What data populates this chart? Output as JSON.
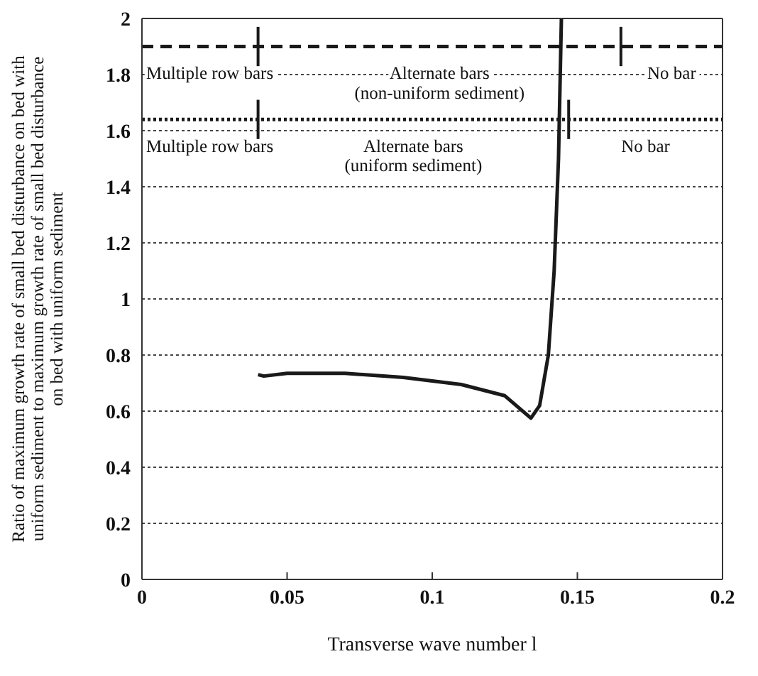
{
  "chart_data": {
    "type": "line",
    "xlabel": "Transverse wave number l",
    "ylabel": "Ratio of maximum growth rate of small bed disturbance on bed with\nuniform sediment to maximum growth rate of small bed disturbance\non bed with uniform sediment",
    "x": [
      0.04,
      0.042,
      0.05,
      0.07,
      0.09,
      0.11,
      0.125,
      0.134,
      0.137,
      0.14,
      0.142,
      0.1435,
      0.1445
    ],
    "series": [
      {
        "color": "#1a1a1a",
        "values": [
          0.73,
          0.725,
          0.735,
          0.735,
          0.72,
          0.695,
          0.655,
          0.575,
          0.62,
          0.8,
          1.1,
          1.5,
          2
        ]
      },
      {
        "color": "#1a1a1a",
        "x": [
          0.04,
          0.04
        ],
        "values": [
          1.83,
          1.97
        ]
      },
      {
        "color": "#1a1a1a",
        "x": [
          0.165,
          0.165
        ],
        "values": [
          1.83,
          1.97
        ]
      },
      {
        "color": "#1a1a1a",
        "x": [
          0.04,
          0.04
        ],
        "values": [
          1.57,
          1.71
        ]
      },
      {
        "color": "#1a1a1a",
        "x": [
          0.147,
          0.147
        ],
        "values": [
          1.57,
          1.71
        ]
      }
    ],
    "xlim": [
      0,
      0.2
    ],
    "xticks": [
      0,
      0.05,
      0.1,
      0.15,
      0.2
    ],
    "ylim": [
      0,
      2
    ],
    "yticks": [
      0,
      0.2,
      0.4,
      0.6,
      0.8,
      1,
      1.2,
      1.4,
      1.6,
      1.8,
      2
    ],
    "grid": "y",
    "marker": "none",
    "line_style": "solid",
    "ref_lines": [
      {
        "axis": "y",
        "value": 1.9,
        "line_style": "dashed",
        "color": "#1a1a1a"
      },
      {
        "axis": "y",
        "value": 1.64,
        "line_style": "dotted",
        "color": "#1a1a1a"
      }
    ],
    "annotations": [
      "Multiple row bars",
      "Alternate bars\n(non-uniform sediment)",
      "No bar",
      "Multiple row bars",
      "Alternate bars\n(uniform sediment)",
      "No bar"
    ]
  }
}
